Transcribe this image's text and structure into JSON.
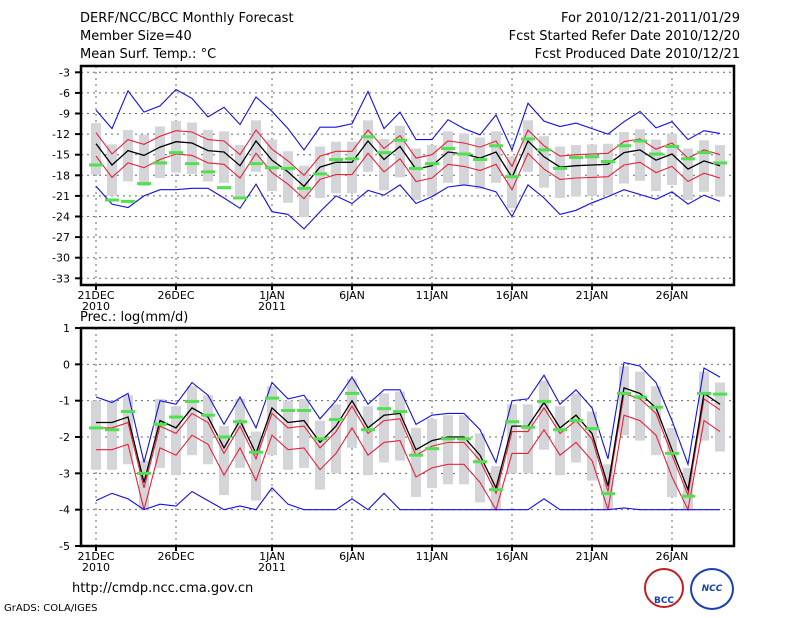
{
  "header": {
    "title": "DERF/NCC/BCC Monthly Forecast",
    "member": "Member Size=40",
    "variable": "Mean Surf. Temp.: °C",
    "period": "For 2010/12/21-2011/01/29",
    "started": "Fcst Started Refer Date 2010/12/20",
    "produced": "Fcst Produced Date 2010/12/21"
  },
  "footer": {
    "url": "http://cmdp.ncc.cma.gov.cn",
    "credit": "GrADS: COLA/IGES",
    "logo_left": "BCC",
    "logo_right": "NCC"
  },
  "colors": {
    "mean": "#000000",
    "quartile": "#e8203a",
    "extreme": "#1010e0",
    "obs": "#50e050",
    "box": "#d4d5d8"
  },
  "chart_data": [
    {
      "type": "line",
      "title": "Mean Surf. Temp.: °C",
      "xlabel_ticks": [
        {
          "day": 0,
          "label": "21DEC",
          "sub": "2010"
        },
        {
          "day": 5,
          "label": "26DEC",
          "sub": ""
        },
        {
          "day": 11,
          "label": "1JAN",
          "sub": "2011"
        },
        {
          "day": 16,
          "label": "6JAN",
          "sub": ""
        },
        {
          "day": 21,
          "label": "11JAN",
          "sub": ""
        },
        {
          "day": 26,
          "label": "16JAN",
          "sub": ""
        },
        {
          "day": 31,
          "label": "21JAN",
          "sub": ""
        },
        {
          "day": 36,
          "label": "26JAN",
          "sub": ""
        }
      ],
      "yticks": [
        -3,
        -6,
        -9,
        -12,
        -15,
        -18,
        -21,
        -24,
        -27,
        -30,
        -33
      ],
      "ylim": [
        -34,
        -2
      ],
      "grid": true,
      "series": [
        {
          "name": "ensemble-max",
          "color": "extreme",
          "values": [
            -8.5,
            -11.2,
            -5.7,
            -8.8,
            -7.9,
            -5.5,
            -6.8,
            -9.5,
            -8.1,
            -10.6,
            -6.6,
            -8.7,
            -11.2,
            -14.3,
            -11,
            -11,
            -10.5,
            -5.8,
            -11.2,
            -8.8,
            -12.8,
            -12.8,
            -9.9,
            -11.2,
            -12.1,
            -9.2,
            -14.3,
            -7.5,
            -10.1,
            -10.9,
            -10.4,
            -11.2,
            -12,
            -10.2,
            -8.7,
            -11.1,
            -10.2,
            -12.8,
            -11.5,
            -11.9
          ]
        },
        {
          "name": "upper-quartile",
          "color": "quartile",
          "values": [
            -11.8,
            -14.9,
            -12.8,
            -13.5,
            -12.3,
            -11.5,
            -11.7,
            -12.8,
            -13.0,
            -15.0,
            -11.4,
            -14.2,
            -15.9,
            -18.0,
            -15.2,
            -14.5,
            -14.5,
            -11.4,
            -14.1,
            -12.2,
            -15.5,
            -15.0,
            -13.0,
            -13.3,
            -13.9,
            -13.0,
            -16.7,
            -11.4,
            -13.7,
            -15.2,
            -15.0,
            -14.9,
            -14.8,
            -13.1,
            -12.7,
            -14.2,
            -13.3,
            -15.5,
            -14.3,
            -15.0
          ]
        },
        {
          "name": "ensemble-mean",
          "color": "mean",
          "values": [
            -13.4,
            -16.5,
            -14.4,
            -15.1,
            -13.9,
            -13.1,
            -13.3,
            -14.4,
            -14.6,
            -16.6,
            -13.0,
            -15.8,
            -17.5,
            -19.6,
            -16.8,
            -16.1,
            -16.1,
            -13.0,
            -15.7,
            -13.8,
            -17.1,
            -16.6,
            -14.6,
            -14.9,
            -15.5,
            -14.6,
            -18.3,
            -13.0,
            -15.3,
            -16.8,
            -16.6,
            -16.5,
            -16.4,
            -14.7,
            -14.3,
            -15.8,
            -14.9,
            -17.1,
            -15.9,
            -16.6
          ]
        },
        {
          "name": "lower-quartile",
          "color": "quartile",
          "values": [
            -15.2,
            -18.3,
            -16.2,
            -16.9,
            -15.7,
            -14.9,
            -15.1,
            -16.2,
            -16.4,
            -18.4,
            -14.8,
            -17.6,
            -19.3,
            -21.4,
            -18.6,
            -17.9,
            -17.9,
            -14.8,
            -17.5,
            -15.6,
            -18.9,
            -18.4,
            -16.4,
            -16.7,
            -17.3,
            -16.4,
            -20.1,
            -14.8,
            -17.1,
            -18.6,
            -18.4,
            -18.3,
            -18.2,
            -16.5,
            -16.1,
            -17.6,
            -16.7,
            -18.9,
            -17.7,
            -18.4
          ]
        },
        {
          "name": "ensemble-min",
          "color": "extreme",
          "values": [
            -19.6,
            -22.2,
            -22.7,
            -21,
            -20.1,
            -20.1,
            -19.9,
            -19.9,
            -21.3,
            -22.8,
            -19.3,
            -23.3,
            -23.7,
            -25.8,
            -23.3,
            -21,
            -22.1,
            -20.2,
            -20.9,
            -19.4,
            -22.1,
            -21.1,
            -19.7,
            -19.4,
            -19.7,
            -20.4,
            -24,
            -19.4,
            -21.3,
            -23.7,
            -23.1,
            -22,
            -21.1,
            -20.1,
            -20.8,
            -21.5,
            -20.4,
            -22.2,
            -20.9,
            -21.8
          ]
        }
      ],
      "obs": [
        -16.5,
        -21.6,
        -21.8,
        -19.2,
        -16.2,
        -14.7,
        -16.3,
        -17.5,
        -19.8,
        -21.3,
        -16.3,
        -16.9,
        -17,
        -19.9,
        -17.8,
        -15.7,
        -15.6,
        -12.4,
        -14.7,
        -12.9,
        -17,
        -16.3,
        -14.1,
        -14.9,
        -15.7,
        -13.7,
        -18.2,
        -12.7,
        -14.3,
        -17,
        -15.4,
        -15.3,
        -16,
        -13.7,
        -13,
        -14.9,
        -13.8,
        -15.6,
        -14.7,
        -16.2
      ],
      "box_high": [
        -10.4,
        -13.5,
        -11.4,
        -12.1,
        -10.9,
        -10.1,
        -10.3,
        -11.4,
        -11.6,
        -13.6,
        -10.0,
        -12.8,
        -14.5,
        -16.6,
        -13.8,
        -13.1,
        -13.1,
        -10.0,
        -12.7,
        -10.8,
        -14.1,
        -13.6,
        -11.6,
        -11.9,
        -12.5,
        -11.6,
        -15.3,
        -10.0,
        -12.3,
        -13.8,
        -13.6,
        -13.5,
        -13.4,
        -11.7,
        -11.3,
        -12.8,
        -11.9,
        -14.1,
        -12.9,
        -13.6
      ],
      "box_low": [
        -17.9,
        -21.0,
        -18.9,
        -19.6,
        -18.4,
        -17.6,
        -17.8,
        -18.9,
        -19.1,
        -21.1,
        -17.5,
        -20.3,
        -22.0,
        -24.1,
        -21.3,
        -20.6,
        -20.6,
        -17.5,
        -20.2,
        -18.3,
        -21.6,
        -21.1,
        -19.1,
        -19.4,
        -20.0,
        -19.1,
        -22.8,
        -17.5,
        -19.8,
        -21.3,
        -21.1,
        -21.0,
        -20.9,
        -19.2,
        -18.8,
        -20.3,
        -19.4,
        -21.6,
        -20.4,
        -21.1
      ]
    },
    {
      "type": "line",
      "title": "Prec.: log(mm/d)",
      "xlabel_ticks": [
        {
          "day": 0,
          "label": "21DEC",
          "sub": "2010"
        },
        {
          "day": 5,
          "label": "26DEC",
          "sub": ""
        },
        {
          "day": 11,
          "label": "1JAN",
          "sub": "2011"
        },
        {
          "day": 16,
          "label": "6JAN",
          "sub": ""
        },
        {
          "day": 21,
          "label": "11JAN",
          "sub": ""
        },
        {
          "day": 26,
          "label": "16JAN",
          "sub": ""
        },
        {
          "day": 31,
          "label": "21JAN",
          "sub": ""
        },
        {
          "day": 36,
          "label": "26JAN",
          "sub": ""
        }
      ],
      "yticks": [
        1,
        0,
        -1,
        -2,
        -3,
        -4,
        -5
      ],
      "ylim": [
        -5,
        1
      ],
      "grid": true,
      "series": [
        {
          "name": "ensemble-max",
          "color": "extreme",
          "values": [
            -0.9,
            -1.05,
            -0.8,
            -2.7,
            -1,
            -1.1,
            -0.5,
            -0.85,
            -1.65,
            -0.9,
            -1.75,
            -0.5,
            -0.95,
            -0.85,
            -1.5,
            -1,
            -0.35,
            -1.1,
            -0.7,
            -0.7,
            -1.65,
            -1.4,
            -1.35,
            -1.35,
            -1.8,
            -2.7,
            -1,
            -0.95,
            -0.3,
            -1.1,
            -0.7,
            -1.2,
            -2.6,
            0.05,
            -0.05,
            -0.5,
            -1.55,
            -2.75,
            -0.1,
            -0.35
          ]
        },
        {
          "name": "upper-quartile",
          "color": "quartile",
          "values": [
            -1.75,
            -1.75,
            -1.6,
            -3.4,
            -1.7,
            -1.9,
            -1.35,
            -1.6,
            -2.45,
            -1.7,
            -2.6,
            -1.35,
            -1.75,
            -1.7,
            -2.3,
            -1.85,
            -1.15,
            -1.9,
            -1.55,
            -1.5,
            -2.5,
            -2.25,
            -2.15,
            -2.15,
            -2.65,
            -3.55,
            -1.85,
            -1.85,
            -1.2,
            -1.9,
            -1.55,
            -2.05,
            -3.5,
            -0.8,
            -0.95,
            -1.35,
            -2.5,
            -3.6,
            -0.95,
            -1.25
          ]
        },
        {
          "name": "ensemble-mean",
          "color": "mean",
          "values": [
            -1.6,
            -1.6,
            -1.45,
            -3.25,
            -1.55,
            -1.75,
            -1.2,
            -1.45,
            -2.3,
            -1.55,
            -2.45,
            -1.2,
            -1.6,
            -1.55,
            -2.15,
            -1.7,
            -1.0,
            -1.75,
            -1.4,
            -1.35,
            -2.35,
            -2.1,
            -2.0,
            -2.0,
            -2.5,
            -3.4,
            -1.7,
            -1.7,
            -1.05,
            -1.75,
            -1.4,
            -1.9,
            -3.35,
            -0.65,
            -0.8,
            -1.2,
            -2.35,
            -3.45,
            -0.8,
            -1.1
          ]
        },
        {
          "name": "lower-quartile",
          "color": "quartile",
          "values": [
            -2.35,
            -2.35,
            -2.2,
            -4.0,
            -2.3,
            -2.5,
            -1.95,
            -2.2,
            -3.05,
            -2.3,
            -3.2,
            -1.95,
            -2.35,
            -2.3,
            -2.9,
            -2.45,
            -1.75,
            -2.5,
            -2.15,
            -2.1,
            -3.1,
            -2.85,
            -2.75,
            -2.75,
            -3.25,
            -4.0,
            -2.45,
            -2.45,
            -1.8,
            -2.5,
            -2.15,
            -2.65,
            -4.0,
            -1.4,
            -1.55,
            -1.95,
            -3.1,
            -4.0,
            -1.55,
            -1.85
          ]
        },
        {
          "name": "ensemble-min",
          "color": "extreme",
          "values": [
            -3.75,
            -3.55,
            -3.7,
            -4,
            -3.85,
            -3.9,
            -3.5,
            -3.75,
            -4,
            -3.9,
            -4,
            -3.4,
            -3.85,
            -4,
            -4,
            -4,
            -3.7,
            -4,
            -3.55,
            -4,
            -4,
            -4,
            -4,
            -4,
            -4,
            -4,
            -4,
            -4,
            -3.7,
            -4,
            -4,
            -4,
            -4,
            -3.95,
            -4,
            -4,
            -4,
            -4,
            -4,
            -4
          ]
        }
      ],
      "obs": [
        -1.75,
        -1.8,
        -1.3,
        -3,
        -1.65,
        -1.45,
        -1.02,
        -1.4,
        -2,
        -1.58,
        -2.42,
        -0.93,
        -1.27,
        -1.27,
        -2.05,
        -1.52,
        -0.8,
        -1.8,
        -1.22,
        -1.3,
        -2.5,
        -2.32,
        -2.05,
        -2.05,
        -2.68,
        -3.45,
        -1.58,
        -1.73,
        -1.02,
        -1.8,
        -1.55,
        -1.77,
        -3.56,
        -0.8,
        -0.9,
        -1.18,
        -2.45,
        -3.63,
        -0.8,
        -0.82
      ],
      "box_high": [
        -1.0,
        -1.0,
        -0.85,
        -2.65,
        -0.95,
        -1.15,
        -0.6,
        -0.85,
        -1.7,
        -0.95,
        -1.85,
        -0.6,
        -1.0,
        -0.95,
        -1.55,
        -1.1,
        -0.4,
        -1.15,
        -0.8,
        -0.75,
        -1.75,
        -1.5,
        -1.4,
        -1.4,
        -1.9,
        -2.8,
        -1.1,
        -1.1,
        -0.45,
        -1.15,
        -0.8,
        -1.3,
        -2.75,
        -0.05,
        -0.2,
        -0.6,
        -1.75,
        -2.85,
        -0.2,
        -0.5
      ],
      "box_low": [
        -2.9,
        -2.9,
        -2.75,
        -4.0,
        -2.85,
        -3.05,
        -2.5,
        -2.75,
        -3.6,
        -2.85,
        -3.75,
        -2.5,
        -2.9,
        -2.85,
        -3.45,
        -3.0,
        -2.3,
        -3.05,
        -2.7,
        -2.65,
        -3.65,
        -3.4,
        -3.3,
        -3.3,
        -3.8,
        -4.0,
        -3.0,
        -3.0,
        -2.35,
        -3.05,
        -2.7,
        -3.2,
        -4.0,
        -1.95,
        -2.1,
        -2.5,
        -3.65,
        -4.0,
        -2.1,
        -2.4
      ]
    }
  ]
}
